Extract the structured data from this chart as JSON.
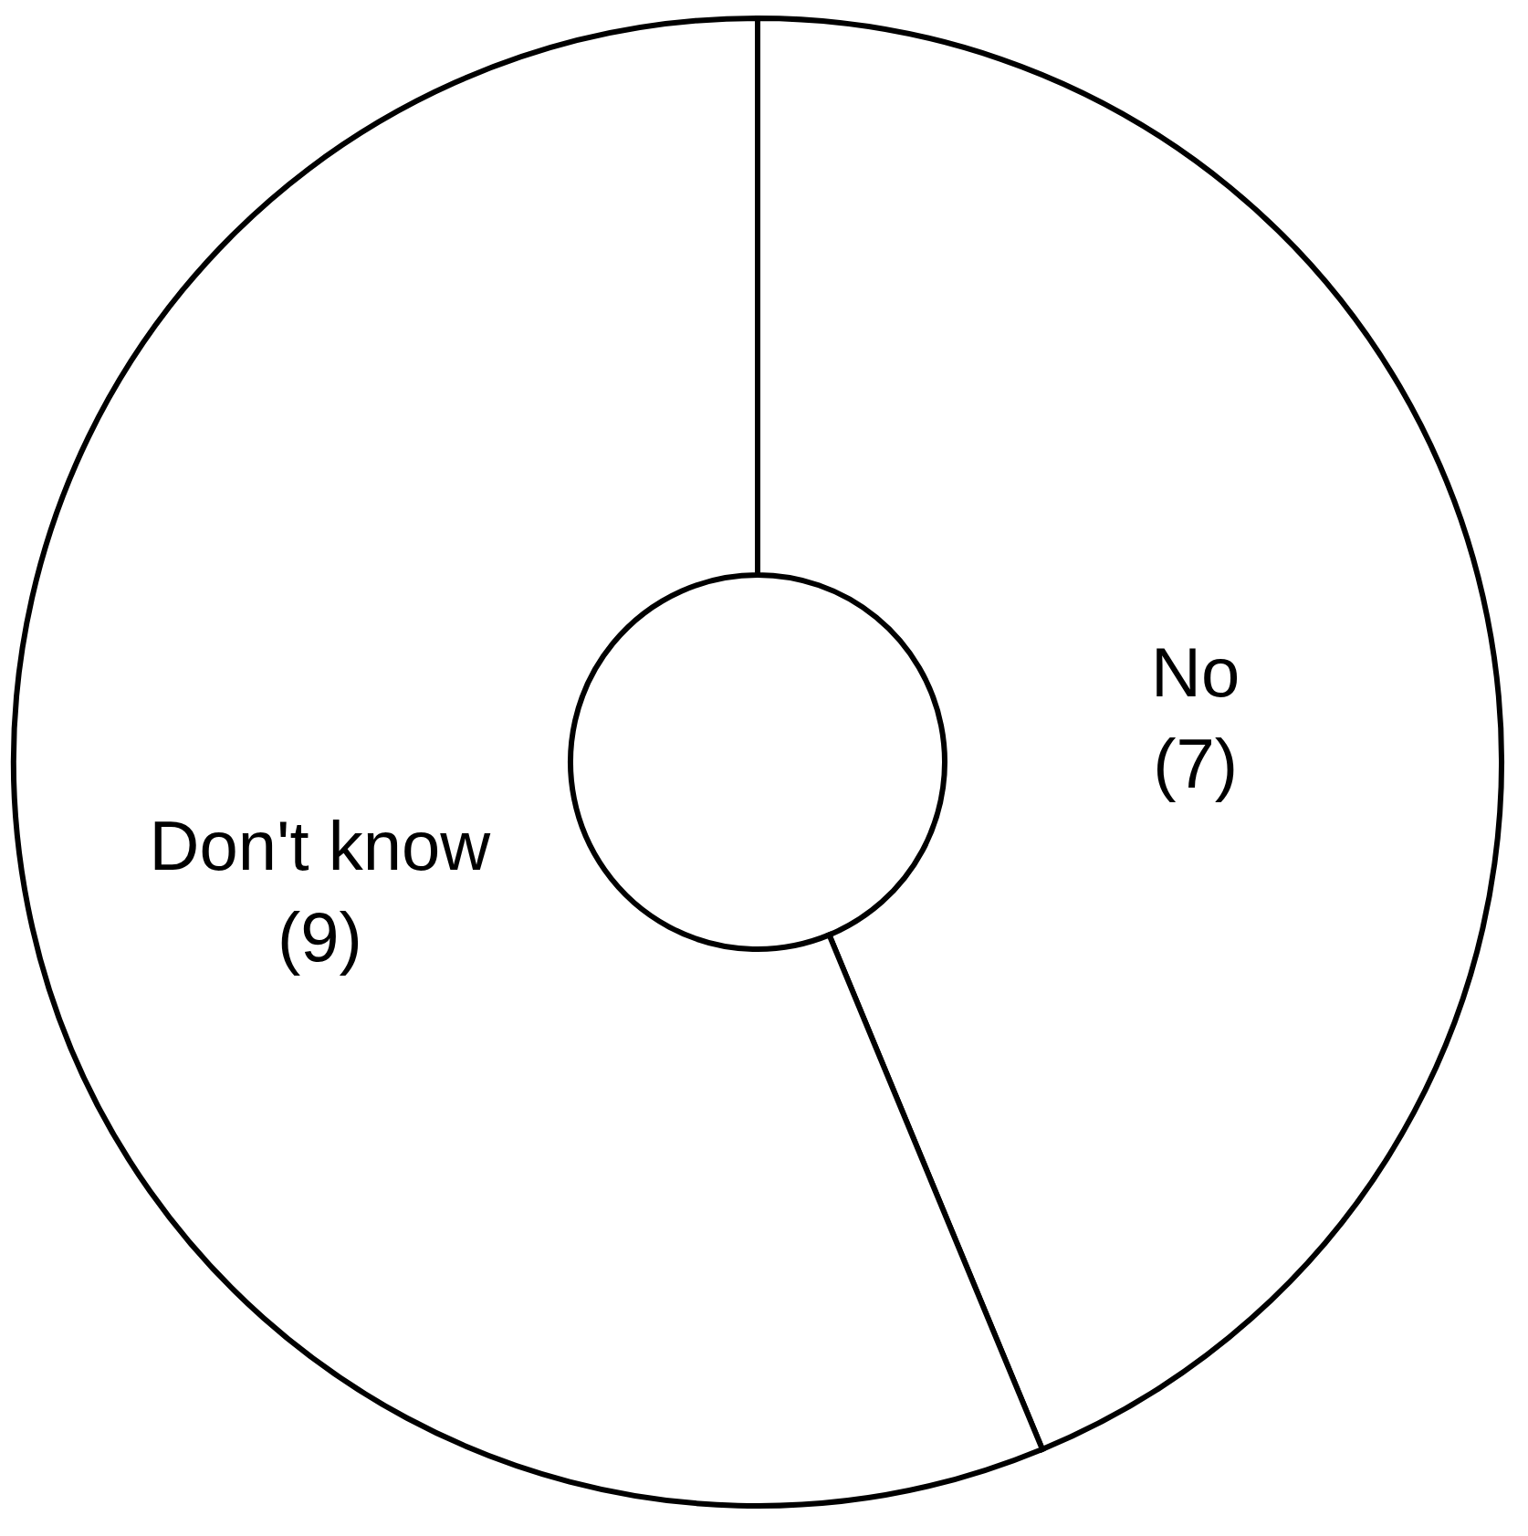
{
  "chart_data": {
    "type": "donut",
    "categories": [
      "No",
      "Don't know"
    ],
    "values": [
      7,
      9
    ],
    "value_labels": [
      "(7)",
      "(9)"
    ],
    "colors": [
      "#ffffff",
      "#ffffff"
    ],
    "legend": false
  }
}
